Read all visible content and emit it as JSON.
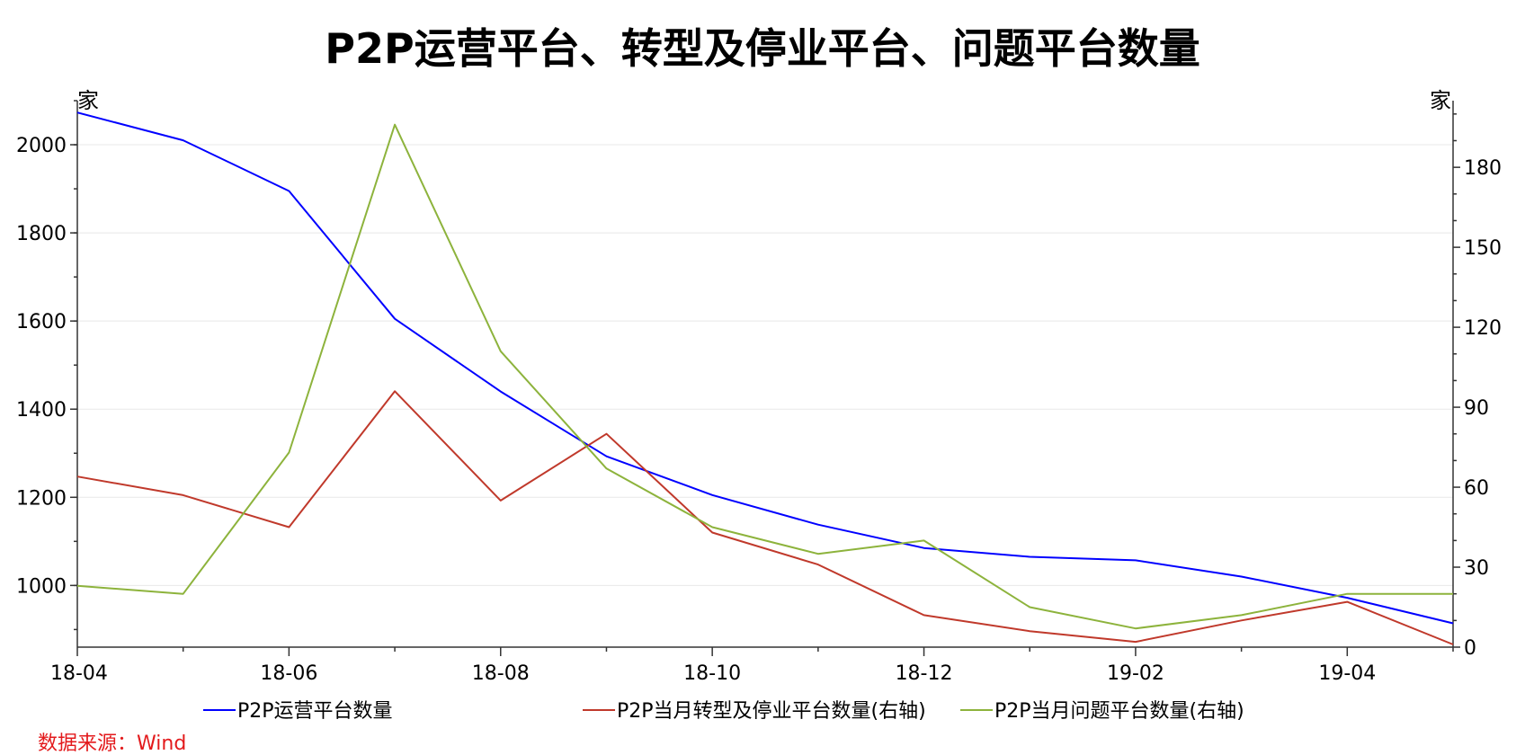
{
  "chart_data": {
    "type": "line",
    "title": "P2P运营平台、转型及停业平台、问题平台数量",
    "left_unit": "家",
    "right_unit": "家",
    "source": "数据来源：Wind",
    "x": [
      "18-04",
      "18-05",
      "18-06",
      "18-07",
      "18-08",
      "18-09",
      "18-10",
      "18-11",
      "18-12",
      "19-01",
      "19-02",
      "19-03",
      "19-04",
      "19-05"
    ],
    "x_tick_labels": [
      "18-04",
      "18-06",
      "18-08",
      "18-10",
      "18-12",
      "19-02",
      "19-04"
    ],
    "y_left": {
      "min": 860,
      "max": 2100,
      "ticks": [
        1000,
        1200,
        1400,
        1600,
        1800,
        2000
      ]
    },
    "y_right": {
      "min": 0,
      "max": 205,
      "ticks": [
        0,
        30,
        60,
        90,
        120,
        150,
        180
      ]
    },
    "grid": true,
    "legend_position": "bottom",
    "series": [
      {
        "name": "P2P运营平台数量",
        "axis": "left",
        "color": "#0000ff",
        "values": [
          2073,
          2010,
          1895,
          1605,
          1440,
          1293,
          1205,
          1138,
          1085,
          1065,
          1057,
          1020,
          972,
          914
        ]
      },
      {
        "name": "P2P当月转型及停业平台数量(右轴)",
        "axis": "right",
        "color": "#c0392b",
        "values": [
          64,
          57,
          45,
          96,
          55,
          80,
          43,
          31,
          12,
          6,
          2,
          10,
          17,
          1
        ]
      },
      {
        "name": "P2P当月问题平台数量(右轴)",
        "axis": "right",
        "color": "#8db33c",
        "values": [
          23,
          20,
          73,
          196,
          111,
          67,
          45,
          35,
          40,
          15,
          7,
          12,
          20,
          20
        ]
      }
    ]
  }
}
